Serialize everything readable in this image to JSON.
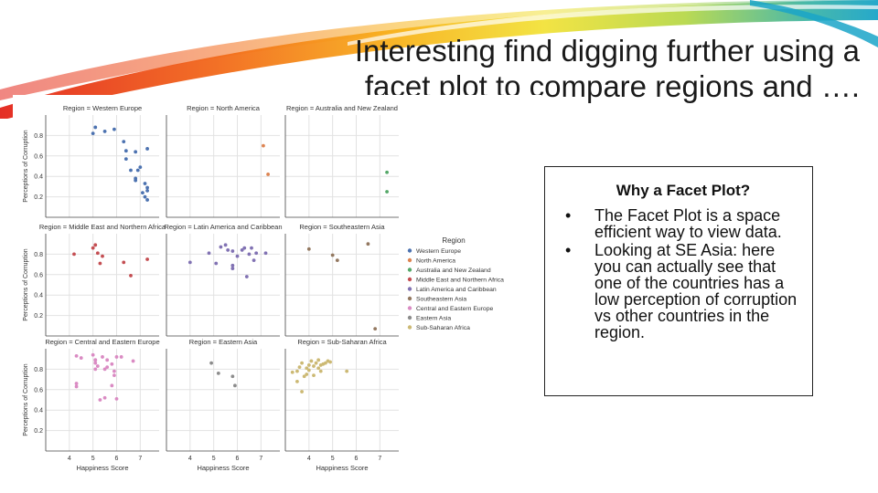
{
  "slide": {
    "title_line_1": "Interesting find digging further using a",
    "title_line_2": "facet plot to compare regions and ….",
    "swoosh_colors": [
      "#e3241b",
      "#f26a1b",
      "#f8b21c",
      "#f2e23a",
      "#b7d84a",
      "#3fb5a6",
      "#1aa4c8"
    ]
  },
  "info_box": {
    "heading": "Why a Facet Plot?",
    "bullets": [
      "The Facet Plot is a space efficient way to view data.",
      "Looking at SE Asia: here you can actually see that one of the countries has a low perception of corruption vs other countries in the region."
    ],
    "bullet_glyph": "•"
  },
  "chart_data": {
    "type": "scatter",
    "facet_by": "Region",
    "xlabel": "Happiness Score",
    "ylabel": "Perceptions of Corruption",
    "xlim": [
      3.0,
      7.8
    ],
    "ylim": [
      0.0,
      1.0
    ],
    "xticks": [
      4,
      5,
      6,
      7
    ],
    "yticks": [
      0.2,
      0.4,
      0.6,
      0.8
    ],
    "legend": {
      "title": "Region",
      "placement": "right"
    },
    "grid": true,
    "series": [
      {
        "name": "Western Europe",
        "color": "#4c72b0",
        "facet_title": "Region = Western Europe",
        "points": [
          [
            5.1,
            0.88
          ],
          [
            5.0,
            0.82
          ],
          [
            5.5,
            0.84
          ],
          [
            5.9,
            0.86
          ],
          [
            6.3,
            0.74
          ],
          [
            6.4,
            0.65
          ],
          [
            6.4,
            0.57
          ],
          [
            6.6,
            0.46
          ],
          [
            6.8,
            0.64
          ],
          [
            6.9,
            0.46
          ],
          [
            7.0,
            0.49
          ],
          [
            6.8,
            0.38
          ],
          [
            6.8,
            0.36
          ],
          [
            7.1,
            0.24
          ],
          [
            7.2,
            0.33
          ],
          [
            7.2,
            0.2
          ],
          [
            7.3,
            0.17
          ],
          [
            7.3,
            0.29
          ],
          [
            7.3,
            0.26
          ],
          [
            7.3,
            0.67
          ]
        ]
      },
      {
        "name": "North America",
        "color": "#dd8452",
        "facet_title": "Region = North America",
        "points": [
          [
            7.1,
            0.7
          ],
          [
            7.3,
            0.42
          ]
        ]
      },
      {
        "name": "Australia and New Zealand",
        "color": "#55a868",
        "facet_title": "Region = Australia and New Zealand",
        "points": [
          [
            7.3,
            0.44
          ],
          [
            7.3,
            0.25
          ]
        ]
      },
      {
        "name": "Middle East and Northern Africa",
        "color": "#c44e52",
        "facet_title": "Region = Middle East and Northern Africa",
        "points": [
          [
            4.2,
            0.8
          ],
          [
            5.0,
            0.86
          ],
          [
            5.1,
            0.89
          ],
          [
            5.2,
            0.81
          ],
          [
            5.3,
            0.71
          ],
          [
            5.4,
            0.78
          ],
          [
            6.3,
            0.72
          ],
          [
            6.6,
            0.59
          ],
          [
            7.3,
            0.75
          ]
        ]
      },
      {
        "name": "Latin America and Caribbean",
        "color": "#8172b3",
        "facet_title": "Region = Latin America and Caribbean",
        "points": [
          [
            4.0,
            0.72
          ],
          [
            4.8,
            0.81
          ],
          [
            5.1,
            0.71
          ],
          [
            5.3,
            0.87
          ],
          [
            5.5,
            0.89
          ],
          [
            5.6,
            0.84
          ],
          [
            5.8,
            0.83
          ],
          [
            5.8,
            0.66
          ],
          [
            5.8,
            0.69
          ],
          [
            6.0,
            0.78
          ],
          [
            6.2,
            0.84
          ],
          [
            6.3,
            0.86
          ],
          [
            6.4,
            0.58
          ],
          [
            6.5,
            0.8
          ],
          [
            6.6,
            0.86
          ],
          [
            6.7,
            0.74
          ],
          [
            6.8,
            0.81
          ],
          [
            7.2,
            0.81
          ]
        ]
      },
      {
        "name": "Southeastern Asia",
        "color": "#937860",
        "facet_title": "Region = Southeastern Asia",
        "points": [
          [
            4.0,
            0.85
          ],
          [
            5.0,
            0.79
          ],
          [
            5.2,
            0.74
          ],
          [
            6.5,
            0.9
          ],
          [
            6.8,
            0.07
          ]
        ]
      },
      {
        "name": "Central and Eastern Europe",
        "color": "#da8bc3",
        "facet_title": "Region = Central and Eastern Europe",
        "points": [
          [
            4.3,
            0.93
          ],
          [
            4.5,
            0.91
          ],
          [
            5.0,
            0.94
          ],
          [
            5.1,
            0.89
          ],
          [
            5.1,
            0.86
          ],
          [
            5.2,
            0.83
          ],
          [
            5.1,
            0.8
          ],
          [
            5.4,
            0.92
          ],
          [
            5.6,
            0.89
          ],
          [
            5.5,
            0.8
          ],
          [
            5.6,
            0.82
          ],
          [
            5.8,
            0.85
          ],
          [
            6.0,
            0.92
          ],
          [
            5.9,
            0.78
          ],
          [
            5.9,
            0.74
          ],
          [
            6.2,
            0.92
          ],
          [
            6.0,
            0.51
          ],
          [
            5.5,
            0.52
          ],
          [
            5.3,
            0.5
          ],
          [
            5.8,
            0.64
          ],
          [
            4.3,
            0.66
          ],
          [
            4.3,
            0.63
          ],
          [
            6.7,
            0.88
          ],
          [
            5.1,
            0.89
          ]
        ]
      },
      {
        "name": "Eastern Asia",
        "color": "#8c8c8c",
        "facet_title": "Region = Eastern Asia",
        "points": [
          [
            4.9,
            0.86
          ],
          [
            5.2,
            0.76
          ],
          [
            5.8,
            0.73
          ],
          [
            5.9,
            0.64
          ]
        ]
      },
      {
        "name": "Sub-Saharan Africa",
        "color": "#ccb974",
        "facet_title": "Region = Sub-Saharan Africa",
        "points": [
          [
            3.3,
            0.77
          ],
          [
            3.5,
            0.68
          ],
          [
            3.6,
            0.82
          ],
          [
            3.7,
            0.58
          ],
          [
            3.7,
            0.86
          ],
          [
            3.8,
            0.73
          ],
          [
            3.9,
            0.75
          ],
          [
            3.9,
            0.81
          ],
          [
            4.0,
            0.84
          ],
          [
            4.0,
            0.79
          ],
          [
            4.1,
            0.88
          ],
          [
            4.2,
            0.83
          ],
          [
            4.2,
            0.74
          ],
          [
            4.3,
            0.86
          ],
          [
            4.4,
            0.81
          ],
          [
            4.4,
            0.89
          ],
          [
            4.5,
            0.84
          ],
          [
            4.6,
            0.85
          ],
          [
            4.7,
            0.86
          ],
          [
            4.8,
            0.88
          ],
          [
            4.9,
            0.87
          ],
          [
            5.6,
            0.78
          ],
          [
            3.5,
            0.78
          ],
          [
            4.5,
            0.78
          ]
        ]
      }
    ]
  }
}
